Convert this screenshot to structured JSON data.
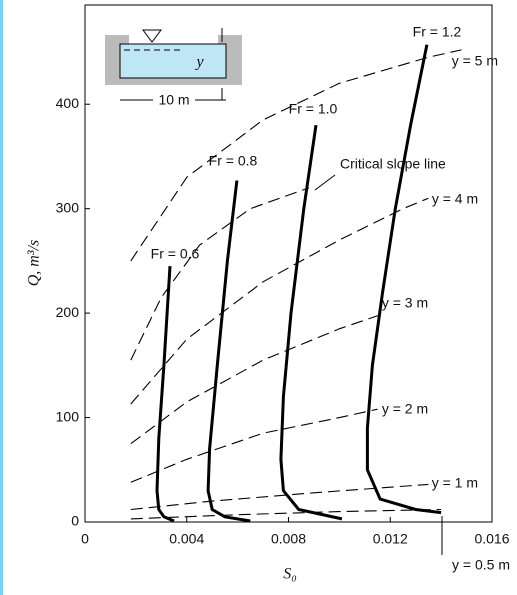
{
  "chart_data": {
    "type": "line",
    "xlabel": "S₀",
    "ylabel": "Q, m³/s",
    "xlim": [
      0,
      0.016
    ],
    "ylim": [
      0,
      495
    ],
    "xticks": [
      0,
      0.004,
      0.008,
      0.012,
      0.016
    ],
    "yticks": [
      0,
      100,
      200,
      300,
      400
    ],
    "inset": {
      "width_label": "10 m",
      "depth_label": "y"
    },
    "series": [
      {
        "name": "Fr = 0.6",
        "color": "#000000",
        "style": "solid",
        "x": [
          0.00334,
          0.0031,
          0.0029,
          0.00283,
          0.0029,
          0.0031,
          0.0035
        ],
        "values": [
          245,
          150,
          80,
          30,
          12,
          5,
          1
        ]
      },
      {
        "name": "Fr = 0.8",
        "color": "#000000",
        "style": "solid",
        "x": [
          0.00597,
          0.0056,
          0.0052,
          0.0049,
          0.00484,
          0.005,
          0.0055,
          0.0065
        ],
        "values": [
          327,
          250,
          150,
          70,
          30,
          12,
          5,
          1
        ]
      },
      {
        "name": "Fr = 1.0",
        "color": "#000000",
        "style": "solid",
        "x": [
          0.00908,
          0.0086,
          0.0081,
          0.0078,
          0.0077,
          0.0078,
          0.0084,
          0.0101
        ],
        "values": [
          380,
          300,
          200,
          120,
          60,
          30,
          12,
          3
        ]
      },
      {
        "name": "Fr = 1.2",
        "color": "#000000",
        "style": "solid",
        "x": [
          0.01344,
          0.0128,
          0.0122,
          0.0117,
          0.0113,
          0.0111,
          0.0111,
          0.0116,
          0.013,
          0.014
        ],
        "values": [
          457,
          380,
          300,
          220,
          150,
          90,
          50,
          22,
          12,
          9
        ]
      },
      {
        "name": "Critical slope line",
        "color": "#000000",
        "style": "dashed",
        "x": [
          0.0018,
          0.003,
          0.0045,
          0.0065,
          0.0088
        ],
        "values": [
          155,
          215,
          265,
          300,
          320
        ]
      },
      {
        "name": "y = 5 m",
        "color": "#000000",
        "style": "dashed",
        "x": [
          0.0018,
          0.004,
          0.007,
          0.01,
          0.0135,
          0.0148
        ],
        "values": [
          250,
          330,
          385,
          420,
          445,
          452
        ]
      },
      {
        "name": "y = 4 m",
        "color": "#000000",
        "style": "dashed",
        "x": [
          0.0018,
          0.004,
          0.007,
          0.01,
          0.0125,
          0.0135
        ],
        "values": [
          113,
          175,
          230,
          270,
          300,
          310
        ]
      },
      {
        "name": "y = 3 m",
        "color": "#000000",
        "style": "dashed",
        "x": [
          0.0018,
          0.004,
          0.007,
          0.01,
          0.0118
        ],
        "values": [
          75,
          115,
          155,
          185,
          200
        ]
      },
      {
        "name": "y = 2 m",
        "color": "#000000",
        "style": "dashed",
        "x": [
          0.0018,
          0.004,
          0.007,
          0.01,
          0.0115
        ],
        "values": [
          38,
          60,
          85,
          100,
          108
        ]
      },
      {
        "name": "y = 1 m",
        "color": "#000000",
        "style": "dashed",
        "x": [
          0.0018,
          0.005,
          0.009,
          0.0135
        ],
        "values": [
          12,
          20,
          28,
          36
        ]
      },
      {
        "name": "y = 0.5 m",
        "color": "#000000",
        "style": "dashed",
        "x": [
          0.0018,
          0.006,
          0.01,
          0.014
        ],
        "values": [
          3,
          7,
          10,
          12
        ]
      }
    ]
  }
}
